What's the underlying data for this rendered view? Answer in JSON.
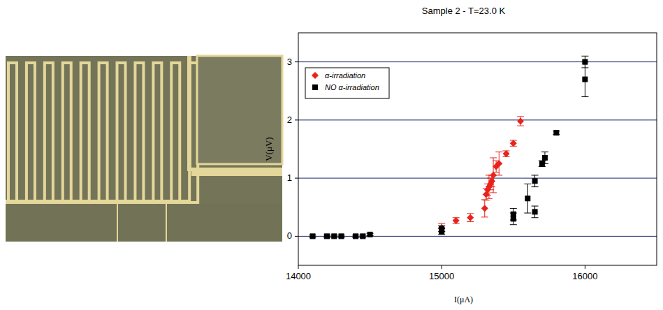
{
  "chart_data": {
    "type": "scatter",
    "title": "Sample 2 -  T=23.0 K",
    "x_label": "I(μA)",
    "y_label": "V(μV)",
    "xlim": [
      14000,
      16500
    ],
    "ylim": [
      -0.5,
      3.5
    ],
    "xticks": [
      14000,
      15000,
      16000
    ],
    "yticks": [
      0,
      1,
      2,
      3
    ],
    "grid": "y",
    "legend": "upper left",
    "series": [
      {
        "name": "α-irradiation",
        "color": "#e8231c",
        "marker": "diamond",
        "x": [
          15000,
          15100,
          15200,
          15300,
          15310,
          15320,
          15330,
          15340,
          15350,
          15360,
          15380,
          15400,
          15450,
          15500,
          15550
        ],
        "values": [
          0.15,
          0.27,
          0.32,
          0.48,
          0.72,
          0.8,
          0.85,
          0.9,
          0.95,
          1.05,
          1.2,
          1.25,
          1.42,
          1.6,
          1.98
        ],
        "errors": [
          0.07,
          0.05,
          0.07,
          0.15,
          0.1,
          0.1,
          0.2,
          0.1,
          0.1,
          0.3,
          0.1,
          0.2,
          0.05,
          0.05,
          0.08
        ]
      },
      {
        "name": "NO α-irradiation",
        "color": "#000000",
        "marker": "square",
        "x": [
          14100,
          14200,
          14250,
          14300,
          14400,
          14450,
          14500,
          15000,
          15000,
          15500,
          15500,
          15600,
          15650,
          15650,
          15700,
          15720,
          15800,
          16000,
          16000
        ],
        "values": [
          0,
          0,
          0,
          0,
          0,
          0,
          0.03,
          0.08,
          0.13,
          0.3,
          0.38,
          0.65,
          0.42,
          0.95,
          1.25,
          1.35,
          1.78,
          2.7,
          3.0
        ],
        "errors": [
          0.02,
          0.02,
          0.02,
          0.02,
          0.02,
          0.02,
          0.02,
          0.05,
          0.05,
          0.1,
          0.1,
          0.25,
          0.1,
          0.1,
          0.05,
          0.1,
          0.03,
          0.3,
          0.1
        ]
      }
    ]
  }
}
